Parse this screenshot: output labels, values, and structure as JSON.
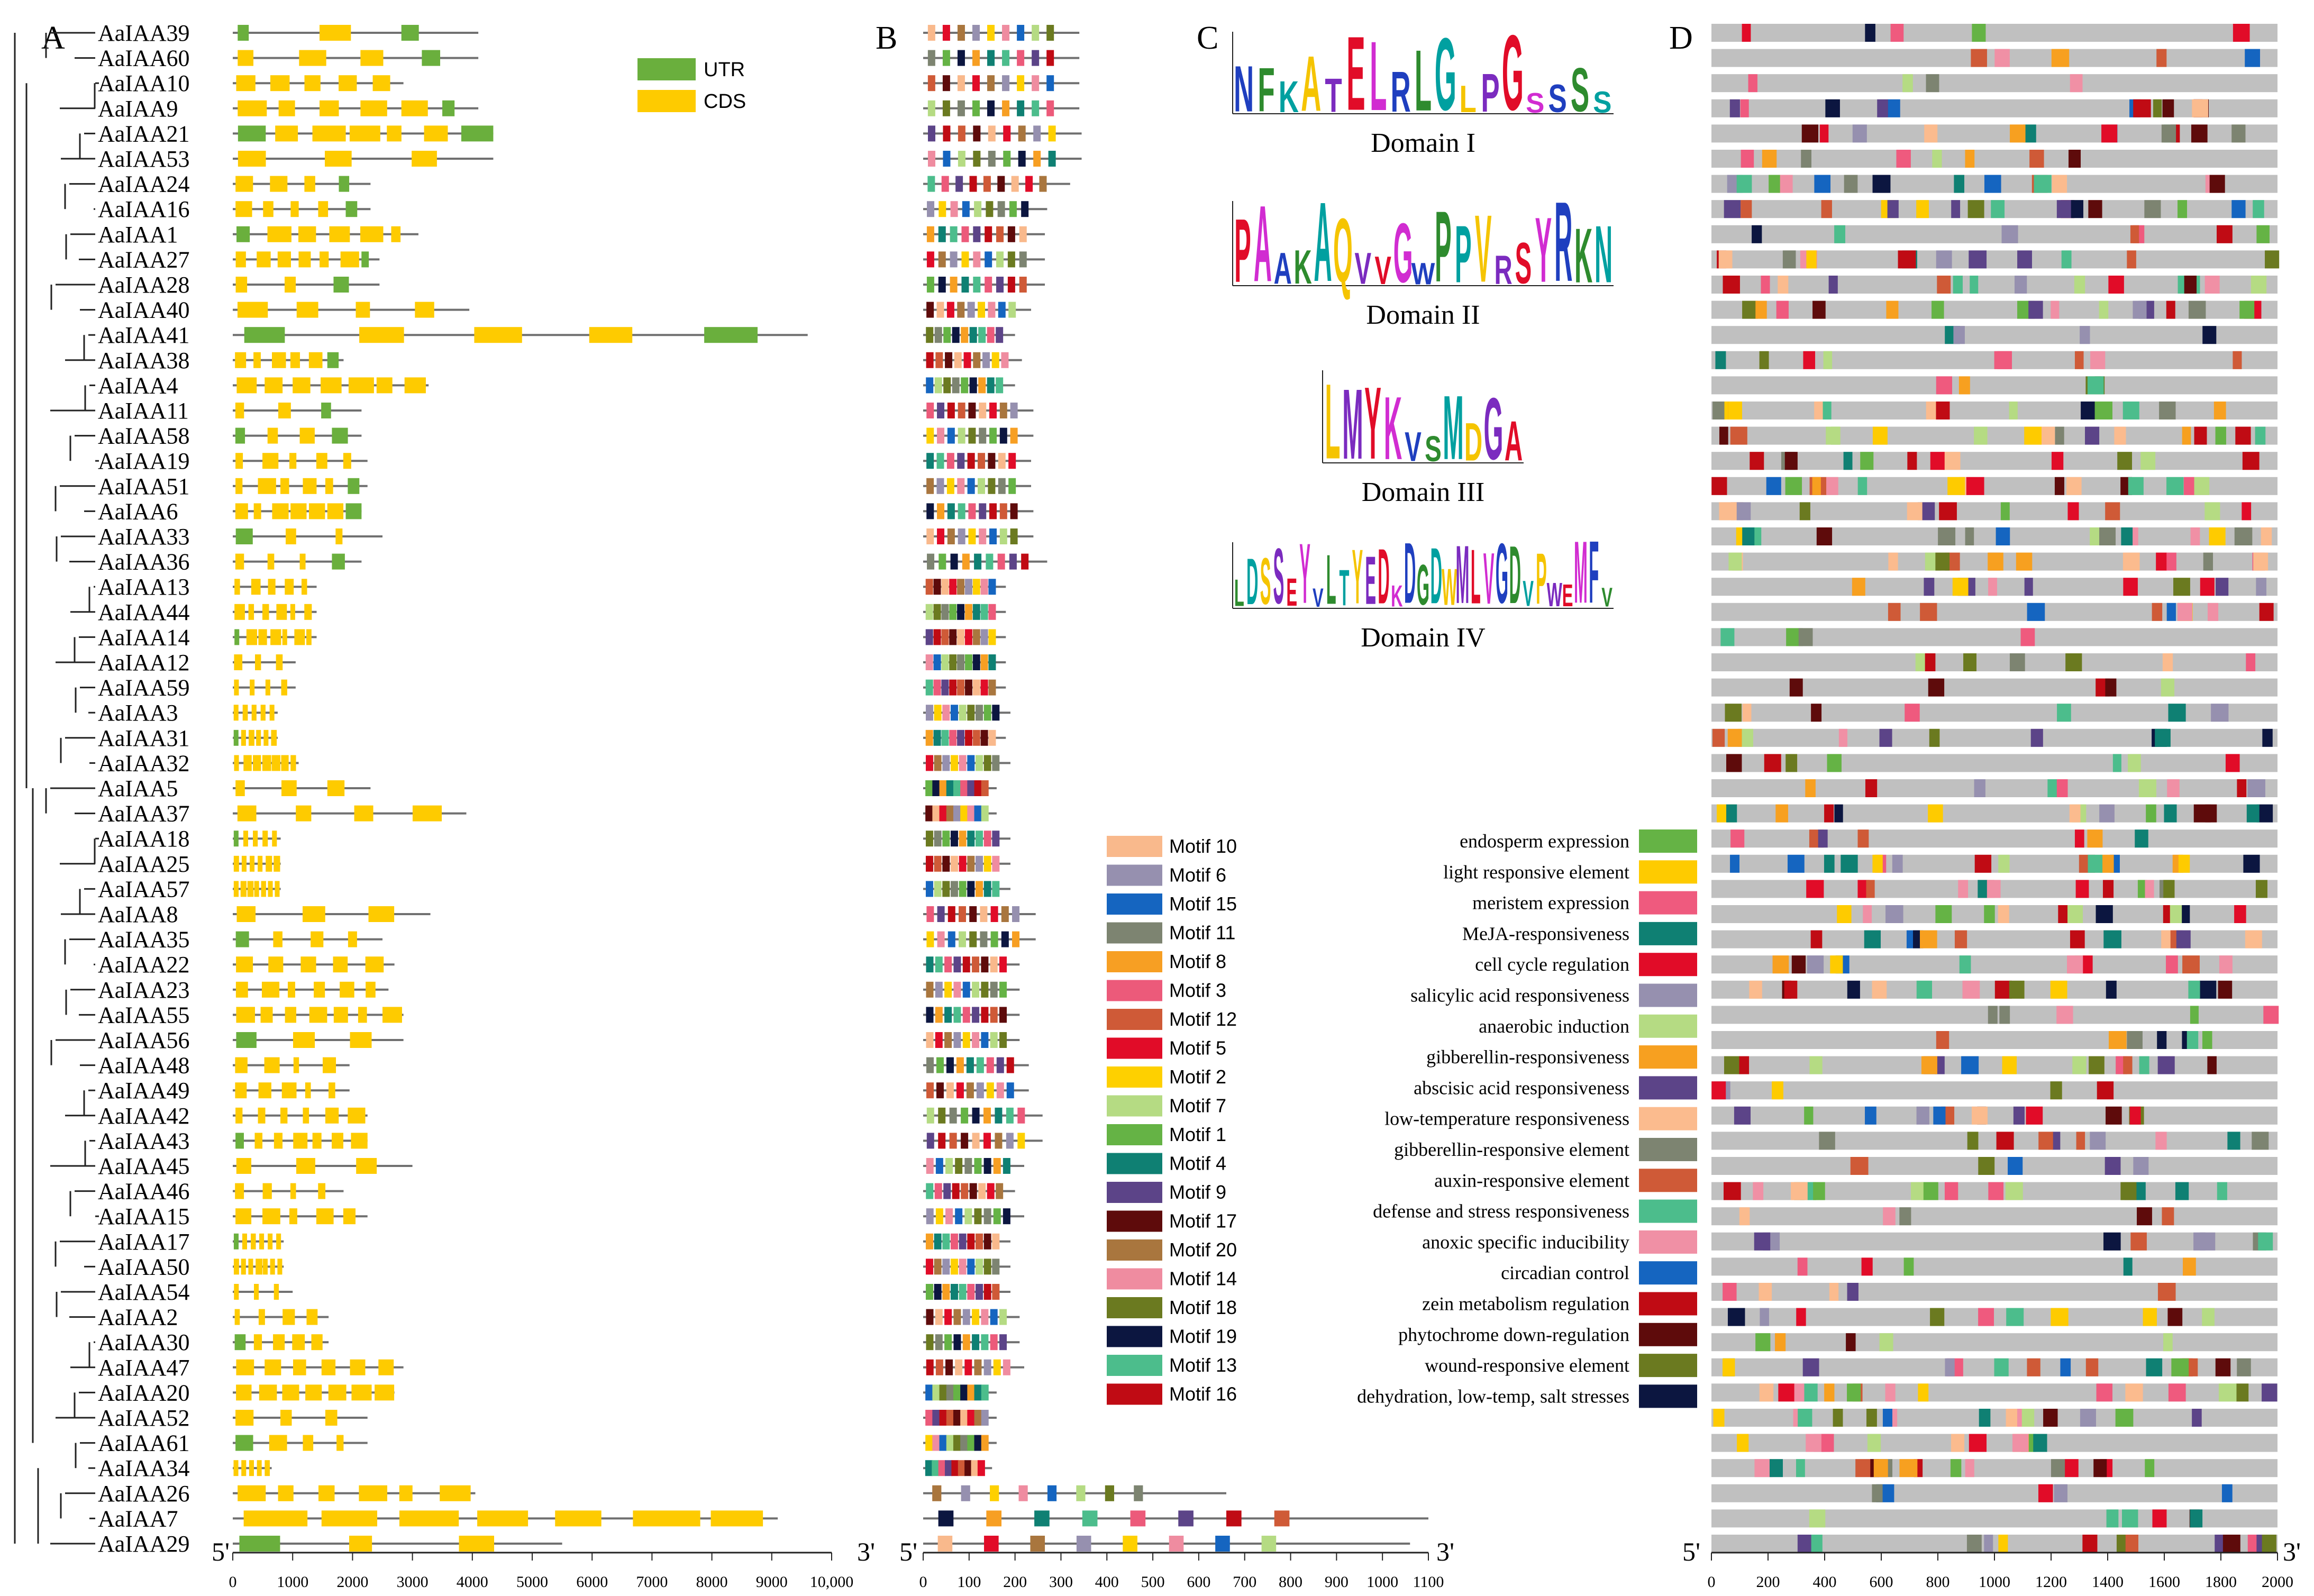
{
  "panels": {
    "a": "A",
    "b": "B",
    "c": "C",
    "d": "D"
  },
  "genes": [
    "AaIAA39",
    "AaIAA60",
    "AaIAA10",
    "AaIAA9",
    "AaIAA21",
    "AaIAA53",
    "AaIAA24",
    "AaIAA16",
    "AaIAA1",
    "AaIAA27",
    "AaIAA28",
    "AaIAA40",
    "AaIAA41",
    "AaIAA38",
    "AaIAA4",
    "AaIAA11",
    "AaIAA58",
    "AaIAA19",
    "AaIAA51",
    "AaIAA6",
    "AaIAA33",
    "AaIAA36",
    "AaIAA13",
    "AaIAA44",
    "AaIAA14",
    "AaIAA12",
    "AaIAA59",
    "AaIAA3",
    "AaIAA31",
    "AaIAA32",
    "AaIAA5",
    "AaIAA37",
    "AaIAA18",
    "AaIAA25",
    "AaIAA57",
    "AaIAA8",
    "AaIAA35",
    "AaIAA22",
    "AaIAA23",
    "AaIAA55",
    "AaIAA56",
    "AaIAA48",
    "AaIAA49",
    "AaIAA42",
    "AaIAA43",
    "AaIAA45",
    "AaIAA46",
    "AaIAA15",
    "AaIAA17",
    "AaIAA50",
    "AaIAA54",
    "AaIAA2",
    "AaIAA30",
    "AaIAA47",
    "AaIAA20",
    "AaIAA52",
    "AaIAA61",
    "AaIAA34",
    "AaIAA26",
    "AaIAA7",
    "AaIAA29"
  ],
  "gene_legend": [
    {
      "label": "UTR",
      "color": "#6aaf3d"
    },
    {
      "label": "CDS",
      "color": "#fecb00"
    }
  ],
  "colors": {
    "utr": "#6aaf3d",
    "cds": "#fecb00",
    "line": "#707070",
    "bg_bar": "#c0c0c0"
  },
  "end_labels": {
    "five": "5'",
    "three": "3'"
  },
  "domains": [
    "Domain I",
    "Domain II",
    "Domain III",
    "Domain IV"
  ],
  "logo_seqs": [
    "NFKATELRLGLPGSSSS",
    "PAAKAQVVGWPPVRSYRKN",
    "LMYKVSMDGA",
    "LDSSEYVLTYEDKDGDWMLVGDVPWEMFV"
  ],
  "motif_legend": [
    {
      "label": "Motif 10",
      "color": "#f9b98c"
    },
    {
      "label": "Motif 6",
      "color": "#9690af"
    },
    {
      "label": "Motif 15",
      "color": "#1565c0"
    },
    {
      "label": "Motif 11",
      "color": "#7d8471"
    },
    {
      "label": "Motif 8",
      "color": "#f79f23"
    },
    {
      "label": "Motif 3",
      "color": "#ec5a7a"
    },
    {
      "label": "Motif 12",
      "color": "#cf5a37"
    },
    {
      "label": "Motif 5",
      "color": "#e10c28"
    },
    {
      "label": "Motif 2",
      "color": "#fed000"
    },
    {
      "label": "Motif 7",
      "color": "#b5db83"
    },
    {
      "label": "Motif 1",
      "color": "#65b345"
    },
    {
      "label": "Motif 4",
      "color": "#0f8073"
    },
    {
      "label": "Motif 9",
      "color": "#5c4488"
    },
    {
      "label": "Motif 17",
      "color": "#5e0b0b"
    },
    {
      "label": "Motif 20",
      "color": "#a9763e"
    },
    {
      "label": "Motif 14",
      "color": "#ef8ca0"
    },
    {
      "label": "Motif 18",
      "color": "#6b7a20"
    },
    {
      "label": "Motif 19",
      "color": "#0c1640"
    },
    {
      "label": "Motif 13",
      "color": "#4cbd8c"
    },
    {
      "label": "Motif 16",
      "color": "#c00b14"
    }
  ],
  "cis_legend": [
    {
      "label": "endosperm expression",
      "color": "#65b345"
    },
    {
      "label": "light responsive element",
      "color": "#fecb00"
    },
    {
      "label": "meristem expression",
      "color": "#ef5a7e"
    },
    {
      "label": "MeJA-responsiveness",
      "color": "#0f8073"
    },
    {
      "label": "cell cycle regulation",
      "color": "#e10c28"
    },
    {
      "label": "salicylic acid responsiveness",
      "color": "#9690af"
    },
    {
      "label": "anaerobic induction",
      "color": "#b5db83"
    },
    {
      "label": "gibberellin-responsiveness",
      "color": "#f7a020"
    },
    {
      "label": "abscisic acid responsiveness",
      "color": "#5c4488"
    },
    {
      "label": "low-temperature responsiveness",
      "color": "#fbbb8e"
    },
    {
      "label": "gibberellin-responsive element",
      "color": "#7d8471"
    },
    {
      "label": "auxin-responsive element",
      "color": "#cf5a37"
    },
    {
      "label": "defense and stress responsiveness",
      "color": "#4cbd8c"
    },
    {
      "label": "anoxic specific inducibility",
      "color": "#f090a5"
    },
    {
      "label": "circadian control",
      "color": "#1565c0"
    },
    {
      "label": "zein metabolism regulation",
      "color": "#c00b14"
    },
    {
      "label": "phytochrome down-regulation",
      "color": "#5e0b0b"
    },
    {
      "label": "wound-responsive element",
      "color": "#6b7a20"
    },
    {
      "label": "dehydration, low-temp, salt stresses",
      "color": "#0c1640"
    }
  ],
  "chart_data": {
    "type": "gene-structure / motif / cis-element composite",
    "axis_a": {
      "ticks": [
        "0",
        "1000",
        "2000",
        "3000",
        "4000",
        "5000",
        "6000",
        "7000",
        "8000",
        "9000",
        "10,000"
      ],
      "range": [
        0,
        10000
      ]
    },
    "axis_b": {
      "ticks": [
        "0",
        "100",
        "200",
        "300",
        "400",
        "500",
        "600",
        "700",
        "800",
        "900",
        "1000",
        "1100"
      ],
      "range": [
        0,
        1100
      ]
    },
    "axis_d": {
      "ticks": [
        "0",
        "200",
        "400",
        "600",
        "800",
        "1000",
        "1200",
        "1400",
        "1600",
        "1800",
        "2000"
      ],
      "range": [
        0,
        2000
      ]
    },
    "gene_length_bp": [
      4100,
      4100,
      2850,
      4100,
      4350,
      4350,
      2300,
      2300,
      3100,
      2450,
      2450,
      3950,
      9600,
      1850,
      3270,
      2150,
      2150,
      2250,
      2250,
      2150,
      2500,
      2150,
      1400,
      1400,
      1400,
      1050,
      1050,
      750,
      750,
      1100,
      2300,
      3900,
      800,
      800,
      800,
      3300,
      2500,
      2700,
      2600,
      2850,
      2850,
      1950,
      1950,
      2250,
      2250,
      3000,
      1850,
      2250,
      850,
      850,
      1000,
      1600,
      1600,
      2850,
      2700,
      2250,
      2250,
      650,
      4050,
      9100,
      5500
    ],
    "protein_length_aa": [
      340,
      340,
      340,
      340,
      345,
      345,
      320,
      270,
      265,
      265,
      265,
      235,
      200,
      215,
      200,
      240,
      240,
      235,
      235,
      240,
      240,
      270,
      180,
      180,
      180,
      180,
      180,
      190,
      180,
      190,
      160,
      160,
      190,
      190,
      190,
      245,
      245,
      210,
      210,
      210,
      210,
      230,
      230,
      260,
      260,
      220,
      200,
      220,
      190,
      190,
      190,
      210,
      210,
      220,
      160,
      160,
      160,
      150,
      660,
      1100,
      1060
    ],
    "promoter_length_bp": 2000
  }
}
